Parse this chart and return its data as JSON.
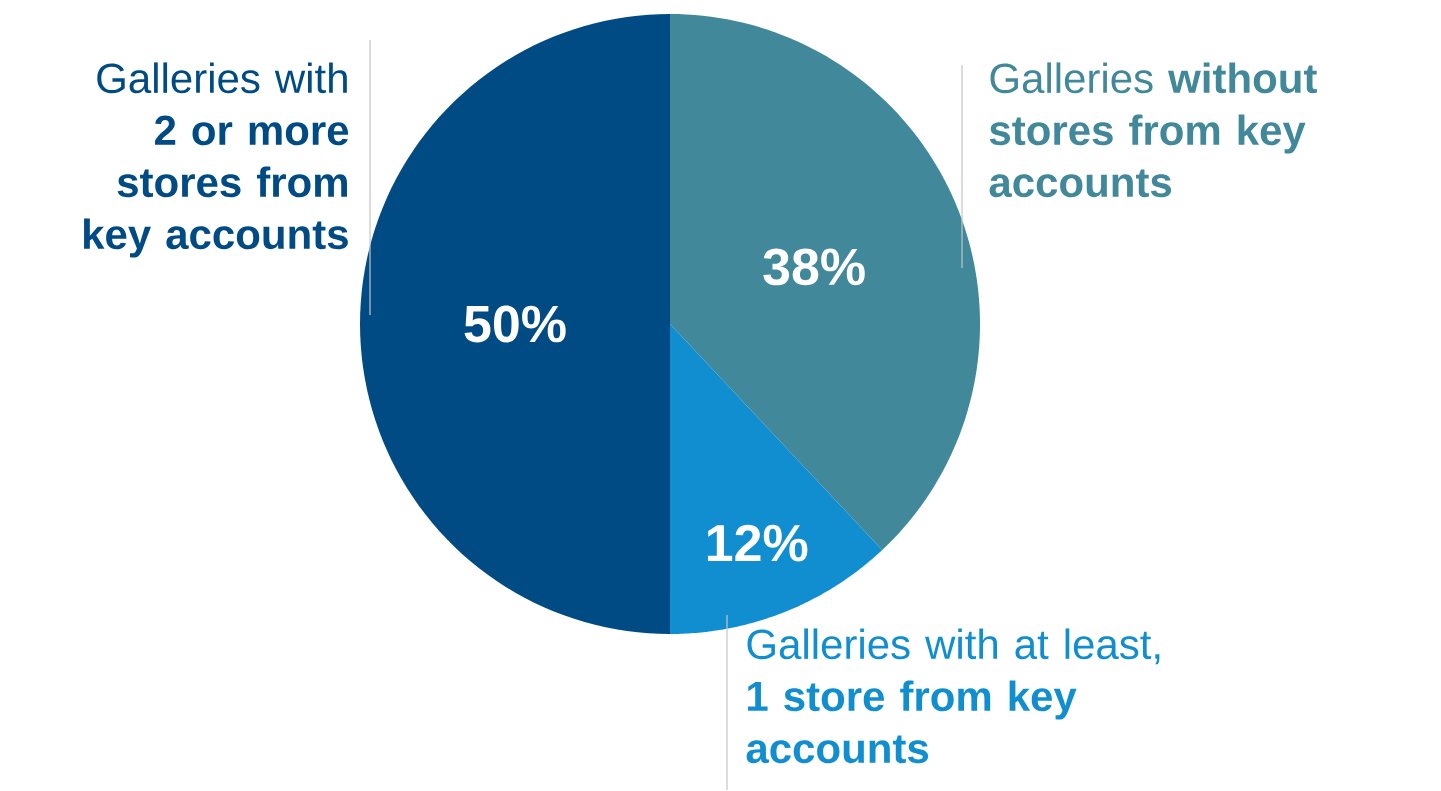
{
  "chart_data": {
    "type": "pie",
    "categories": [
      "Galleries **without stores from key accounts**",
      "Galleries with at least, **1 store from key accounts**",
      "Galleries with **2 or more stores from key accounts**"
    ],
    "values": [
      38,
      12,
      50
    ],
    "colors": [
      "#41889a",
      "#118ed0",
      "#014b85"
    ],
    "value_labels": [
      "38%",
      "12%",
      "50%"
    ]
  }
}
